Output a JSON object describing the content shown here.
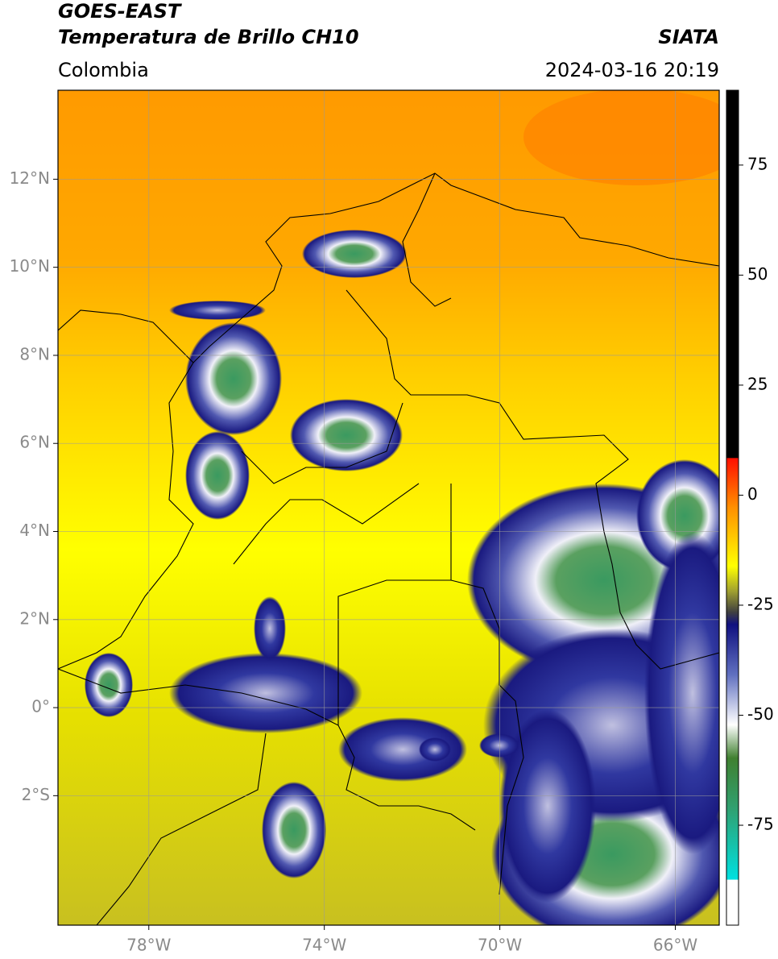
{
  "header": {
    "source": "GOES-EAST",
    "title": "Temperatura de Brillo CH10",
    "agency": "SIATA",
    "region": "Colombia",
    "datetime": "2024-03-16 20:19"
  },
  "map": {
    "xlim": [
      -80.07,
      -65.0
    ],
    "ylim": [
      -4.94,
      14.02
    ],
    "xticks": [
      {
        "value": -78,
        "label": "78°W"
      },
      {
        "value": -74,
        "label": "74°W"
      },
      {
        "value": -70,
        "label": "70°W"
      },
      {
        "value": -66,
        "label": "66°W"
      }
    ],
    "yticks": [
      {
        "value": 12,
        "label": "12°N"
      },
      {
        "value": 10,
        "label": "10°N"
      },
      {
        "value": 8,
        "label": "8°N"
      },
      {
        "value": 6,
        "label": "6°N"
      },
      {
        "value": 4,
        "label": "4°N"
      },
      {
        "value": 2,
        "label": "2°N"
      },
      {
        "value": 0,
        "label": "0°"
      },
      {
        "value": -2,
        "label": "2°S"
      }
    ],
    "grid": true
  },
  "colorbar": {
    "lim": [
      -97.7,
      92
    ],
    "ticks": [
      75,
      50,
      25,
      0,
      -25,
      -50,
      -75
    ]
  }
}
